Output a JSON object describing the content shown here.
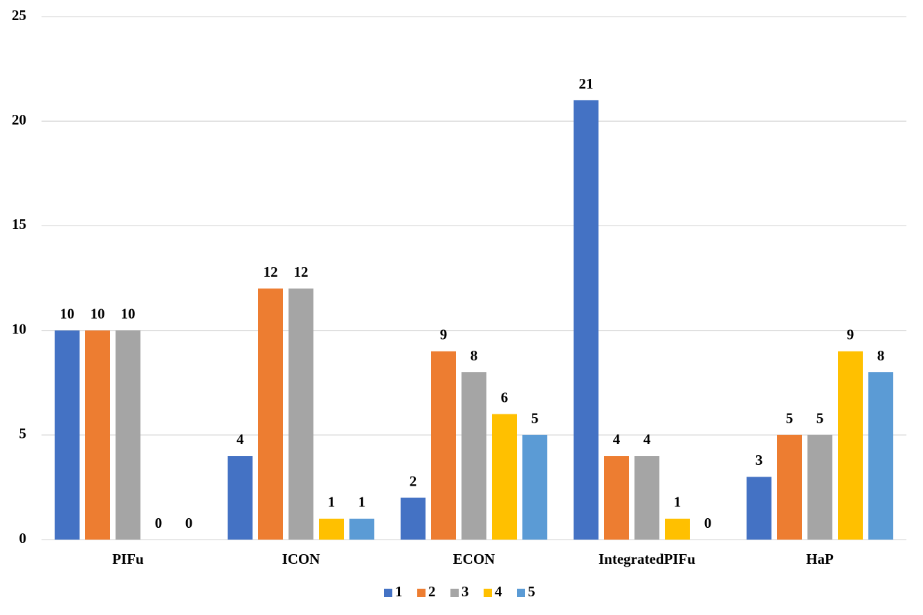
{
  "chart_data": {
    "type": "bar",
    "categories": [
      "PIFu",
      "ICON",
      "ECON",
      "IntegratedPIFu",
      "HaP"
    ],
    "series": [
      {
        "name": "1",
        "color": "#4472c4",
        "values": [
          10,
          4,
          2,
          21,
          3
        ]
      },
      {
        "name": "2",
        "color": "#ed7d31",
        "values": [
          10,
          12,
          9,
          4,
          5
        ]
      },
      {
        "name": "3",
        "color": "#a5a5a5",
        "values": [
          10,
          12,
          8,
          4,
          5
        ]
      },
      {
        "name": "4",
        "color": "#ffc000",
        "values": [
          0,
          1,
          6,
          1,
          9
        ]
      },
      {
        "name": "5",
        "color": "#5b9bd5",
        "values": [
          0,
          1,
          5,
          0,
          8
        ]
      }
    ],
    "ylim": [
      0,
      25
    ],
    "yticks": [
      0,
      5,
      10,
      15,
      20,
      25
    ],
    "grid": true,
    "legend": "bottom"
  }
}
